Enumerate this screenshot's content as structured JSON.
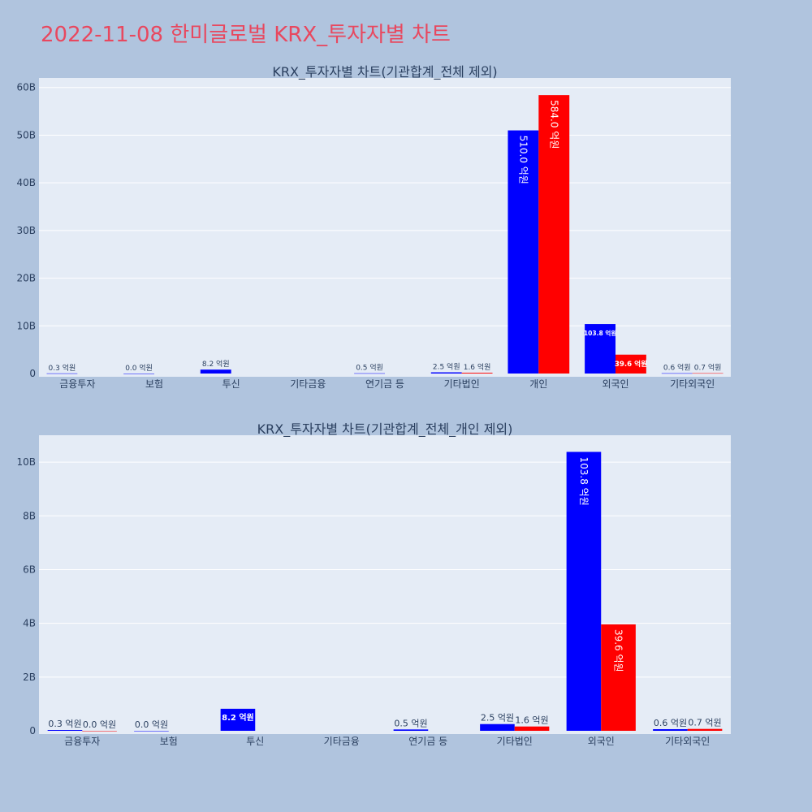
{
  "page": {
    "title": "2022-11-08 한미글로벌 KRX_투자자별 차트",
    "title_color": "#e8485f",
    "background": "#b0c4de"
  },
  "colors": {
    "plot_bg": "#e5ecf6",
    "grid": "#ffffff",
    "text": "#2a3f5f",
    "label_dark": "#2a3f5f",
    "label_light": "#ffffff"
  },
  "chart_data": [
    {
      "type": "bar",
      "title": "KRX_투자자별 차트(기관합계_전체 제외)",
      "categories": [
        "금융투자",
        "보험",
        "투신",
        "기타금융",
        "연기금 등",
        "기타법인",
        "개인",
        "외국인",
        "기타외국인"
      ],
      "ylim": [
        0,
        62000000000
      ],
      "yticks": [
        0,
        10000000000,
        20000000000,
        30000000000,
        40000000000,
        50000000000,
        60000000000
      ],
      "ytick_labels": [
        "0",
        "10B",
        "20B",
        "30B",
        "40B",
        "50B",
        "60B"
      ],
      "grid": true,
      "legend": "none",
      "series": [
        {
          "color": "#0000ff",
          "values": [
            30000000,
            0,
            820000000,
            null,
            50000000,
            250000000,
            51000000000,
            10380000000,
            60000000
          ],
          "labels": [
            "0.3 억원",
            "0.0 억원",
            "8.2 억원",
            "",
            "0.5 억원",
            "2.5 억원",
            "510.0 억원",
            "103.8 억원",
            "0.6 억원"
          ]
        },
        {
          "color": "#ff0000",
          "values": [
            null,
            null,
            null,
            null,
            null,
            160000000,
            58400000000,
            3960000000,
            70000000
          ],
          "labels": [
            "",
            "",
            "",
            "",
            "",
            "1.6 억원",
            "584.0 억원",
            "39.6 억원",
            "0.7 억원"
          ]
        }
      ]
    },
    {
      "type": "bar",
      "title": "KRX_투자자별 차트(기관합계_전체_개인 제외)",
      "categories": [
        "금융투자",
        "보험",
        "투신",
        "기타금융",
        "연기금 등",
        "기타법인",
        "외국인",
        "기타외국인"
      ],
      "ylim": [
        0,
        11000000000
      ],
      "yticks": [
        0,
        2000000000,
        4000000000,
        6000000000,
        8000000000,
        10000000000
      ],
      "ytick_labels": [
        "0",
        "2B",
        "4B",
        "6B",
        "8B",
        "10B"
      ],
      "grid": true,
      "legend": "none",
      "series": [
        {
          "color": "#0000ff",
          "values": [
            30000000,
            0,
            820000000,
            null,
            50000000,
            250000000,
            10380000000,
            60000000
          ],
          "labels": [
            "0.3 억원",
            "0.0 억원",
            "8.2 억원",
            "",
            "0.5 억원",
            "2.5 억원",
            "103.8 억원",
            "0.6 억원"
          ]
        },
        {
          "color": "#ff0000",
          "values": [
            0,
            null,
            null,
            null,
            null,
            160000000,
            3960000000,
            70000000
          ],
          "labels": [
            "0.0 억원",
            "",
            "",
            "",
            "",
            "1.6 억원",
            "39.6 억원",
            "0.7 억원"
          ]
        }
      ]
    }
  ]
}
